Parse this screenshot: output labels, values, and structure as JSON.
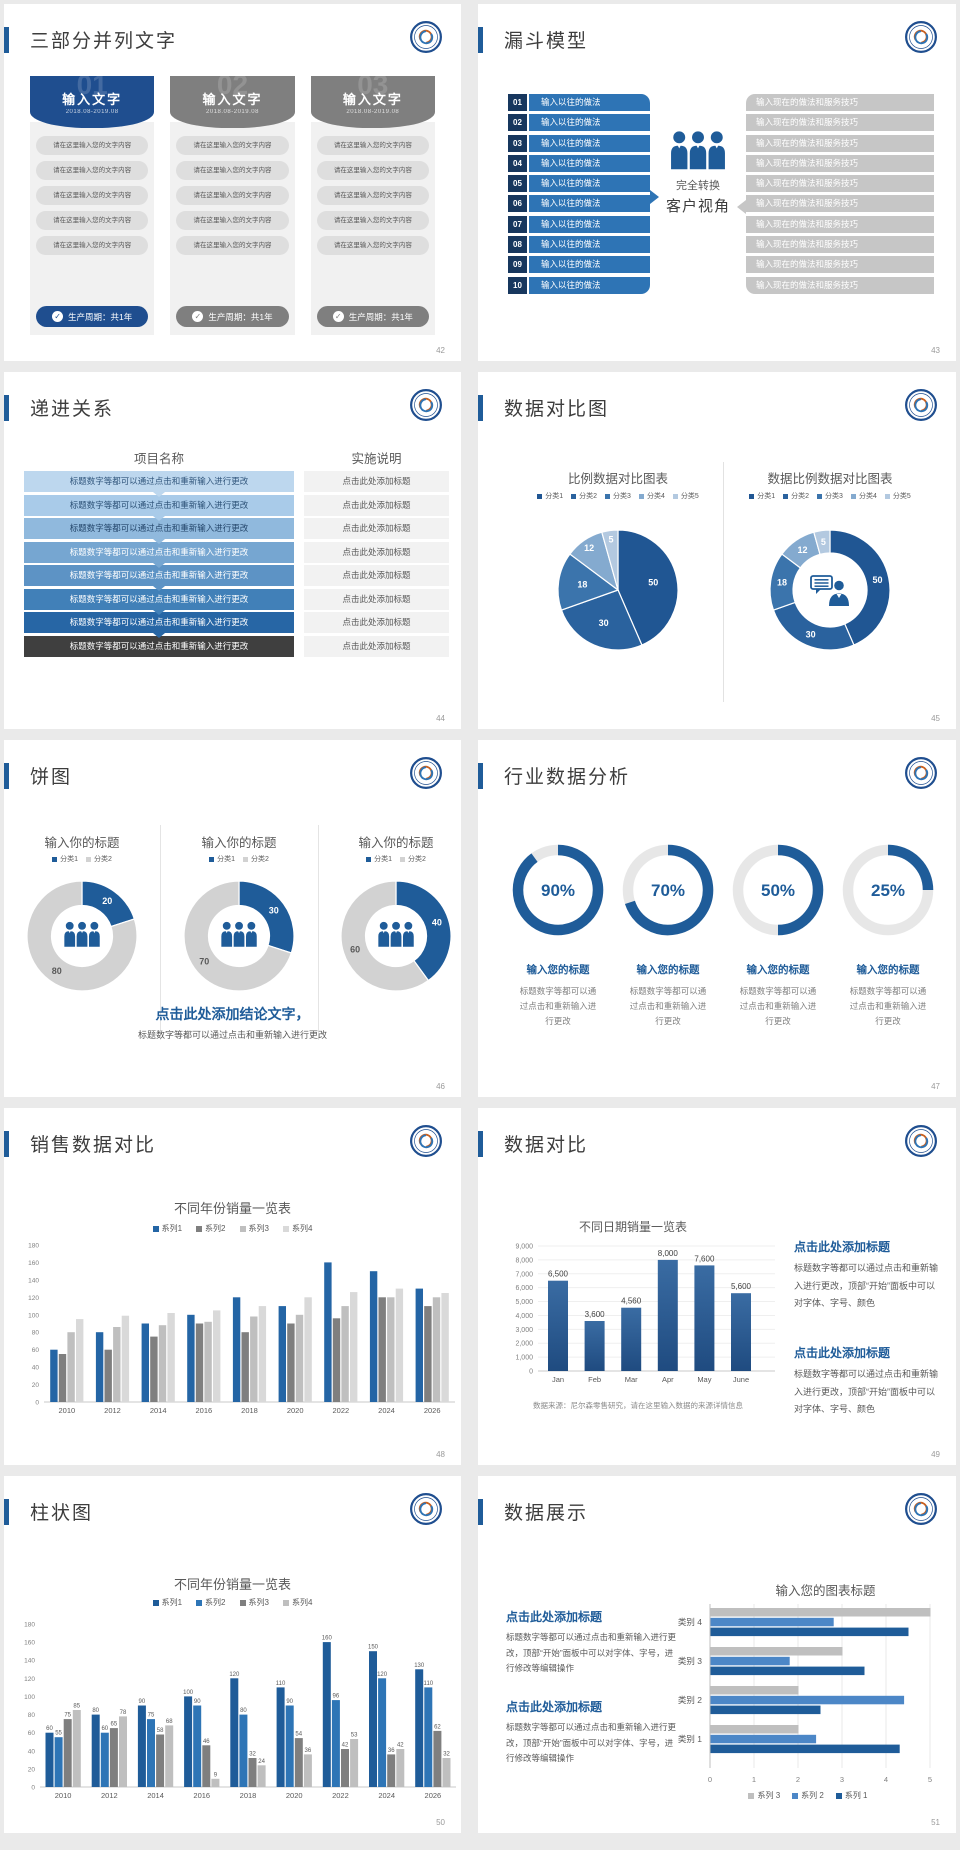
{
  "canvas": {
    "background": "#eaeaea",
    "slide_background": "#ffffff",
    "accent_color": "#1F5C99"
  },
  "slides": {
    "s42": {
      "page_no": "42",
      "title": "三部分并列文字",
      "columns": [
        {
          "number": "01",
          "header": "输入文字",
          "date": "2018.08-2019.08",
          "theme_color": "#1F4E8F",
          "items": [
            "请在这里输入您的文字内容",
            "请在这里输入您的文字内容",
            "请在这里输入您的文字内容",
            "请在这里输入您的文字内容",
            "请在这里输入您的文字内容"
          ],
          "footer": "生产周期：共1年",
          "footer_icon": "check-icon"
        },
        {
          "number": "02",
          "header": "输入文字",
          "date": "2018.08-2019.08",
          "theme_color": "#7F7F7F",
          "items": [
            "请在这里输入您的文字内容",
            "请在这里输入您的文字内容",
            "请在这里输入您的文字内容",
            "请在这里输入您的文字内容",
            "请在这里输入您的文字内容"
          ],
          "footer": "生产周期：共1年",
          "footer_icon": "check-icon"
        },
        {
          "number": "03",
          "header": "输入文字",
          "date": "2018.08-2019.08",
          "theme_color": "#7F7F7F",
          "items": [
            "请在这里输入您的文字内容",
            "请在这里输入您的文字内容",
            "请在这里输入您的文字内容",
            "请在这里输入您的文字内容",
            "请在这里输入您的文字内容"
          ],
          "footer": "生产周期：共1年",
          "footer_icon": "check-icon"
        }
      ]
    },
    "s43": {
      "page_no": "43",
      "title": "漏斗模型",
      "badge_color": "#17375E",
      "bar_color": "#2E74B5",
      "right_bar_color": "#C6C6C6",
      "left_items": [
        {
          "num": "01",
          "text": "输入以往的做法"
        },
        {
          "num": "02",
          "text": "输入以往的做法"
        },
        {
          "num": "03",
          "text": "输入以往的做法"
        },
        {
          "num": "04",
          "text": "输入以往的做法"
        },
        {
          "num": "05",
          "text": "输入以往的做法"
        },
        {
          "num": "06",
          "text": "输入以往的做法"
        },
        {
          "num": "07",
          "text": "输入以往的做法"
        },
        {
          "num": "08",
          "text": "输入以往的做法"
        },
        {
          "num": "09",
          "text": "输入以往的做法"
        },
        {
          "num": "10",
          "text": "输入以往的做法"
        }
      ],
      "right_items": [
        "输入现在的做法和服务技巧",
        "输入现在的做法和服务技巧",
        "输入现在的做法和服务技巧",
        "输入现在的做法和服务技巧",
        "输入现在的做法和服务技巧",
        "输入现在的做法和服务技巧",
        "输入现在的做法和服务技巧",
        "输入现在的做法和服务技巧",
        "输入现在的做法和服务技巧",
        "输入现在的做法和服务技巧"
      ],
      "center": {
        "icon": "people-icon",
        "line1": "完全转换",
        "line2": "客户视角"
      }
    },
    "s44": {
      "page_no": "44",
      "title": "递进关系",
      "header_left": "项目名称",
      "header_right": "实施说明",
      "desc_bg": "#F2F2F2",
      "rows": [
        {
          "name": "标题数字等都可以通过点击和重新输入进行更改",
          "desc": "点击此处添加标题",
          "color": "#BDD7EE",
          "text_color": "#31567C"
        },
        {
          "name": "标题数字等都可以通过点击和重新输入进行更改",
          "desc": "点击此处添加标题",
          "color": "#A9CBE9",
          "text_color": "#2C5176"
        },
        {
          "name": "标题数字等都可以通过点击和重新输入进行更改",
          "desc": "点击此处添加标题",
          "color": "#90B9DD",
          "text_color": "#24466B"
        },
        {
          "name": "标题数字等都可以通过点击和重新输入进行更改",
          "desc": "点击此处添加标题",
          "color": "#76A6D1",
          "text_color": "#ffffff"
        },
        {
          "name": "标题数字等都可以通过点击和重新输入进行更改",
          "desc": "点击此处添加标题",
          "color": "#5D93C5",
          "text_color": "#ffffff"
        },
        {
          "name": "标题数字等都可以通过点击和重新输入进行更改",
          "desc": "点击此处添加标题",
          "color": "#4180B8",
          "text_color": "#ffffff"
        },
        {
          "name": "标题数字等都可以通过点击和重新输入进行更改",
          "desc": "点击此处添加标题",
          "color": "#2766A5",
          "text_color": "#ffffff"
        },
        {
          "name": "标题数字等都可以通过点击和重新输入进行更改",
          "desc": "点击此处添加标题",
          "color": "#3F3F3F",
          "text_color": "#ffffff"
        }
      ]
    },
    "s45": {
      "page_no": "45",
      "title": "数据对比图",
      "charts": [
        "s45-left",
        "s45-right"
      ]
    },
    "s46": {
      "page_no": "46",
      "title": "饼图",
      "charts": [
        "s46-1",
        "s46-2",
        "s46-3"
      ],
      "conclusion_title": "点击此处添加结论文字，",
      "conclusion_text": "标题数字等都可以通过点击和重新输入进行更改"
    },
    "s47": {
      "page_no": "47",
      "title": "行业数据分析",
      "chart": "s47-gauges",
      "item_title": "输入您的标题",
      "item_text": "标题数字等都可以通过点击和重新输入进行更改"
    },
    "s48": {
      "page_no": "48",
      "title": "销售数据对比",
      "chart": "s48-bars"
    },
    "s49": {
      "page_no": "49",
      "title": "数据对比",
      "chart": "s49-bars",
      "source": "数据来源：尼尔森零售研究，请在这里输入数据的来源详情信息",
      "blocks": [
        {
          "title": "点击此处添加标题",
          "text": "标题数字等都可以通过点击和重新输入进行更改，顶部“开始”面板中可以对字体、字号、颜色"
        },
        {
          "title": "点击此处添加标题",
          "text": "标题数字等都可以通过点击和重新输入进行更改，顶部“开始”面板中可以对字体、字号、颜色"
        }
      ]
    },
    "s50": {
      "page_no": "50",
      "title": "柱状图",
      "chart": "s50-bars"
    },
    "s51": {
      "page_no": "51",
      "title": "数据展示",
      "chart": "s51-hbars",
      "blocks": [
        {
          "title": "点击此处添加标题",
          "text": "标题数字等都可以通过点击和重新输入进行更改，顶部“开始”面板中可以对字体、字号，进行修改等编辑操作"
        },
        {
          "title": "点击此处添加标题",
          "text": "标题数字等都可以通过点击和重新输入进行更改，顶部“开始”面板中可以对字体、字号，进行修改等编辑操作"
        }
      ]
    }
  },
  "chart_data": [
    {
      "id": "s45-left",
      "type": "pie",
      "title": "比例数据对比图表",
      "categories": [
        "分类1",
        "分类2",
        "分类3",
        "分类4",
        "分类5"
      ],
      "values": [
        50,
        30,
        18,
        12,
        5
      ],
      "colors": [
        "#205693",
        "#2A629E",
        "#3B74AC",
        "#84AACF",
        "#B3C9E0"
      ],
      "legend_position": "top"
    },
    {
      "id": "s45-right",
      "type": "donut",
      "title": "数据比例数据对比图表",
      "categories": [
        "分类1",
        "分类2",
        "分类3",
        "分类4",
        "分类5"
      ],
      "values": [
        50,
        30,
        18,
        12,
        5
      ],
      "colors": [
        "#205693",
        "#2A629E",
        "#3B74AC",
        "#84AACF",
        "#B3C9E0"
      ],
      "center_icon": "consultant-icon",
      "legend_position": "top"
    },
    {
      "id": "s46-1",
      "type": "donut",
      "title": "输入你的标题",
      "categories": [
        "分类1",
        "分类2"
      ],
      "values": [
        20,
        80
      ],
      "colors": [
        "#1F5C99",
        "#D2D2D2"
      ],
      "center_icon": "people-icon"
    },
    {
      "id": "s46-2",
      "type": "donut",
      "title": "输入你的标题",
      "categories": [
        "分类1",
        "分类2"
      ],
      "values": [
        30,
        70
      ],
      "colors": [
        "#1F5C99",
        "#D2D2D2"
      ],
      "center_icon": "people-icon"
    },
    {
      "id": "s46-3",
      "type": "donut",
      "title": "输入你的标题",
      "categories": [
        "分类1",
        "分类2"
      ],
      "values": [
        40,
        60
      ],
      "colors": [
        "#1F5C99",
        "#D2D2D2"
      ],
      "center_icon": "people-icon"
    },
    {
      "id": "s47-gauges",
      "type": "donut-gauges",
      "values": [
        90,
        70,
        50,
        25
      ],
      "labels": [
        "90%",
        "70%",
        "50%",
        "25%"
      ],
      "arc_color": "#1F5C99",
      "track_color": "#E7E7E7"
    },
    {
      "id": "s48-bars",
      "type": "bar",
      "title": "不同年份销量一览表",
      "categories": [
        "2010",
        "2012",
        "2014",
        "2016",
        "2018",
        "2020",
        "2022",
        "2024",
        "2026"
      ],
      "series": [
        {
          "name": "系列1",
          "color": "#2465A5",
          "values": [
            60,
            80,
            90,
            100,
            120,
            110,
            160,
            150,
            130
          ]
        },
        {
          "name": "系列2",
          "color": "#7F7F7F",
          "values": [
            55,
            60,
            75,
            90,
            80,
            90,
            96,
            120,
            110
          ]
        },
        {
          "name": "系列3",
          "color": "#BFBFBF",
          "values": [
            80,
            86,
            88,
            92,
            98,
            100,
            110,
            120,
            120
          ]
        },
        {
          "name": "系列4",
          "color": "#D9D9D9",
          "values": [
            95,
            99,
            102,
            105,
            110,
            120,
            126,
            130,
            125
          ]
        }
      ],
      "ylim": [
        0,
        180
      ],
      "ystep": 20,
      "show_labels": false
    },
    {
      "id": "s49-bars",
      "type": "bar",
      "title": "不同日期销量一览表",
      "categories": [
        "Jan",
        "Feb",
        "Mar",
        "Apr",
        "May",
        "June"
      ],
      "values": [
        6500,
        3600,
        4560,
        8000,
        7600,
        5600
      ],
      "labels": [
        "6,500",
        "3,600",
        "4,560",
        "8,000",
        "7,600",
        "5,600"
      ],
      "ylim": [
        0,
        9000
      ],
      "ystep": 1000,
      "grid": true,
      "bar_color_top": "#3A6CA3",
      "bar_color_bottom": "#1F4B80"
    },
    {
      "id": "s50-bars",
      "type": "bar",
      "title": "不同年份销量一览表",
      "categories": [
        "2010",
        "2012",
        "2014",
        "2016",
        "2018",
        "2020",
        "2022",
        "2024",
        "2026"
      ],
      "series": [
        {
          "name": "系列1",
          "color": "#1F5C99",
          "values": [
            60,
            80,
            90,
            100,
            120,
            110,
            160,
            150,
            130
          ]
        },
        {
          "name": "系列2",
          "color": "#2E75B6",
          "values": [
            55,
            60,
            75,
            90,
            80,
            90,
            96,
            120,
            110
          ]
        },
        {
          "name": "系列3",
          "color": "#7F7F7F",
          "values": [
            75,
            65,
            58,
            46,
            32,
            54,
            42,
            36,
            62
          ]
        },
        {
          "name": "系列4",
          "color": "#BFBFBF",
          "values": [
            85,
            78,
            68,
            9,
            24,
            36,
            53,
            42,
            32
          ]
        }
      ],
      "ylim": [
        0,
        180
      ],
      "ystep": 20,
      "show_labels": true
    },
    {
      "id": "s51-hbars",
      "type": "hbar",
      "title": "输入您的图表标题",
      "categories": [
        "类别 4",
        "类别 3",
        "类别 2",
        "类别 1"
      ],
      "series": [
        {
          "name": "系列 3",
          "color": "#BFBFBF",
          "values": [
            5.0,
            3.0,
            2.0,
            2.0
          ]
        },
        {
          "name": "系列 2",
          "color": "#4C87C7",
          "values": [
            2.8,
            1.8,
            4.4,
            2.4
          ]
        },
        {
          "name": "系列 1",
          "color": "#1F5C99",
          "values": [
            4.5,
            3.5,
            2.5,
            4.3
          ]
        }
      ],
      "xlim": [
        0,
        5
      ],
      "xstep": 1,
      "legend_order": [
        "系列 3",
        "系列 2",
        "系列 1"
      ]
    }
  ]
}
